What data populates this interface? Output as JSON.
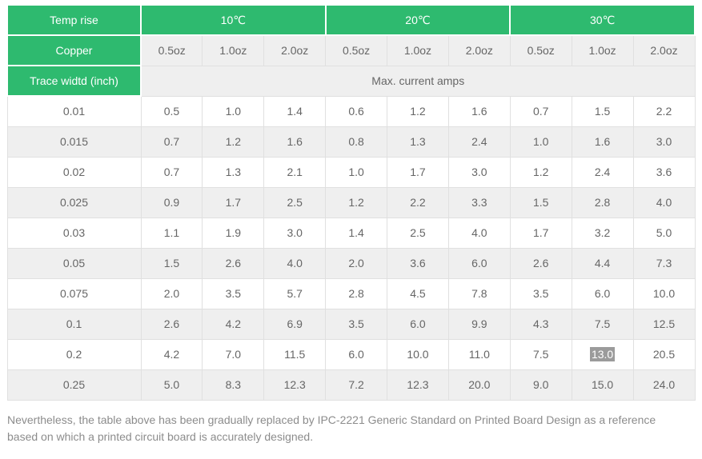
{
  "colors": {
    "accent": "#2eba6f",
    "row_alt": "#efefef",
    "border": "#e0e0e0",
    "text": "#666666",
    "note": "#8c8c8c",
    "hl_bg": "#9b9b9b",
    "hl_text": "#ffffff"
  },
  "table": {
    "header": {
      "temp_rise_label": "Temp rise",
      "temp_groups": [
        "10℃",
        "20℃",
        "30℃"
      ],
      "copper_label": "Copper",
      "oz_labels": [
        "0.5oz",
        "1.0oz",
        "2.0oz",
        "0.5oz",
        "1.0oz",
        "2.0oz",
        "0.5oz",
        "1.0oz",
        "2.0oz"
      ],
      "trace_width_label": "Trace widtd (inch)",
      "max_current_label": "Max. current amps"
    },
    "rows": [
      {
        "trace_width": "0.01",
        "values": [
          "0.5",
          "1.0",
          "1.4",
          "0.6",
          "1.2",
          "1.6",
          "0.7",
          "1.5",
          "2.2"
        ]
      },
      {
        "trace_width": "0.015",
        "values": [
          "0.7",
          "1.2",
          "1.6",
          "0.8",
          "1.3",
          "2.4",
          "1.0",
          "1.6",
          "3.0"
        ]
      },
      {
        "trace_width": "0.02",
        "values": [
          "0.7",
          "1.3",
          "2.1",
          "1.0",
          "1.7",
          "3.0",
          "1.2",
          "2.4",
          "3.6"
        ]
      },
      {
        "trace_width": "0.025",
        "values": [
          "0.9",
          "1.7",
          "2.5",
          "1.2",
          "2.2",
          "3.3",
          "1.5",
          "2.8",
          "4.0"
        ]
      },
      {
        "trace_width": "0.03",
        "values": [
          "1.1",
          "1.9",
          "3.0",
          "1.4",
          "2.5",
          "4.0",
          "1.7",
          "3.2",
          "5.0"
        ]
      },
      {
        "trace_width": "0.05",
        "values": [
          "1.5",
          "2.6",
          "4.0",
          "2.0",
          "3.6",
          "6.0",
          "2.6",
          "4.4",
          "7.3"
        ]
      },
      {
        "trace_width": "0.075",
        "values": [
          "2.0",
          "3.5",
          "5.7",
          "2.8",
          "4.5",
          "7.8",
          "3.5",
          "6.0",
          "10.0"
        ]
      },
      {
        "trace_width": "0.1",
        "values": [
          "2.6",
          "4.2",
          "6.9",
          "3.5",
          "6.0",
          "9.9",
          "4.3",
          "7.5",
          "12.5"
        ]
      },
      {
        "trace_width": "0.2",
        "values": [
          "4.2",
          "7.0",
          "11.5",
          "6.0",
          "10.0",
          "11.0",
          "7.5",
          "13.0",
          "20.5"
        ],
        "highlight_index": 7
      },
      {
        "trace_width": "0.25",
        "values": [
          "5.0",
          "8.3",
          "12.3",
          "7.2",
          "12.3",
          "20.0",
          "9.0",
          "15.0",
          "24.0"
        ]
      }
    ],
    "highlighted_cell": {
      "row": "0.2",
      "column": "30℃ 1.0oz",
      "value": "13.0"
    }
  },
  "footer": {
    "note": "Nevertheless, the table above has been gradually replaced by IPC-2221 Generic Standard on Printed Board Design as a reference based on which a printed circuit board is accurately designed."
  }
}
